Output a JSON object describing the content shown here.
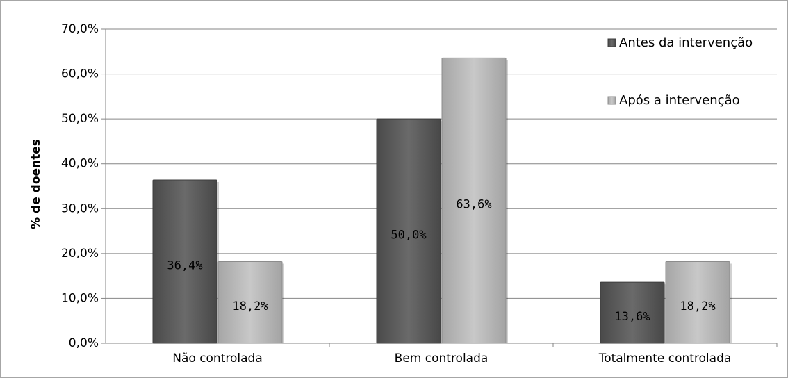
{
  "chart_data": {
    "type": "bar",
    "title": "",
    "xlabel": "",
    "ylabel": "% de doentes",
    "ylim": [
      0,
      70
    ],
    "ytick_step": 10,
    "ytick_labels": [
      "0,0%",
      "10,0%",
      "20,0%",
      "30,0%",
      "40,0%",
      "50,0%",
      "60,0%",
      "70,0%"
    ],
    "grid": true,
    "legend_position": "top-right",
    "categories": [
      "Não controlada",
      "Bem controlada",
      "Totalmente controlada"
    ],
    "series": [
      {
        "name": "Antes da intervenção",
        "color": "#595959",
        "values": [
          36.4,
          50.0,
          13.6
        ],
        "labels": [
          "36,4%",
          "50,0%",
          "13,6%"
        ]
      },
      {
        "name": "Após a intervenção",
        "color": "#b5b5b5",
        "values": [
          18.2,
          63.6,
          18.2
        ],
        "labels": [
          "18,2%",
          "63,6%",
          "18,2%"
        ]
      }
    ]
  }
}
